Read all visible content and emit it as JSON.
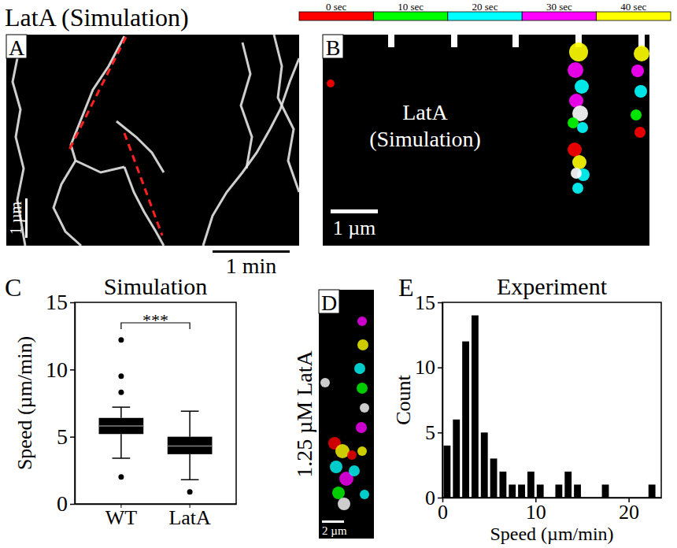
{
  "header": {
    "title": "LatA (Simulation)",
    "time_legend": [
      {
        "label": "0 sec",
        "color": "#ff0000"
      },
      {
        "label": "10 sec",
        "color": "#00ff00"
      },
      {
        "label": "20 sec",
        "color": "#00ffff"
      },
      {
        "label": "30 sec",
        "color": "#ff00ff"
      },
      {
        "label": "40 sec",
        "color": "#ffff00"
      }
    ]
  },
  "panels": {
    "A": {
      "letter": "A",
      "scale_length": "1 µm",
      "scale_time": "1 min"
    },
    "B": {
      "letter": "B",
      "label": "LatA (Simulation)",
      "scale_length": "1 µm"
    },
    "D": {
      "letter": "D",
      "label": "1.25 µM LatA",
      "scale_length": "2 µm"
    }
  },
  "chart_data": [
    {
      "type": "box",
      "letter": "C",
      "title": "Simulation",
      "y_label": "Speed (µm/min)",
      "categories": [
        "WT",
        "LatA"
      ],
      "whisker_low": [
        3.4,
        1.8
      ],
      "q1": [
        5.2,
        3.7
      ],
      "median": [
        5.8,
        4.3
      ],
      "q3": [
        6.4,
        5.0
      ],
      "whisker_high": [
        7.2,
        6.9
      ],
      "outliers": [
        [
          2.0,
          8.3,
          9.5,
          12.2
        ],
        [
          0.9
        ]
      ],
      "annotation": "***",
      "ylim": [
        0,
        15
      ],
      "yticks": [
        0,
        5,
        10,
        15
      ],
      "color": "#000000"
    },
    {
      "type": "histogram",
      "letter": "E",
      "title": "Experiment",
      "x_label": "Speed (µm/min)",
      "y_label": "Count",
      "bins": [
        0,
        1,
        2,
        3,
        4,
        5,
        6,
        7,
        8,
        9,
        10,
        11,
        12,
        13,
        14,
        15,
        16,
        17,
        18,
        19,
        20,
        21,
        22,
        23
      ],
      "counts": [
        4,
        6,
        12,
        14,
        5,
        3,
        2,
        1,
        1,
        2,
        1,
        0,
        1,
        2,
        1,
        0,
        0,
        1,
        0,
        0,
        0,
        0,
        1
      ],
      "xlim": [
        0,
        23.5
      ],
      "xticks": [
        0,
        10,
        20
      ],
      "ylim": [
        0,
        15
      ],
      "yticks": [
        0,
        5,
        10,
        15
      ],
      "color": "#000000"
    }
  ]
}
